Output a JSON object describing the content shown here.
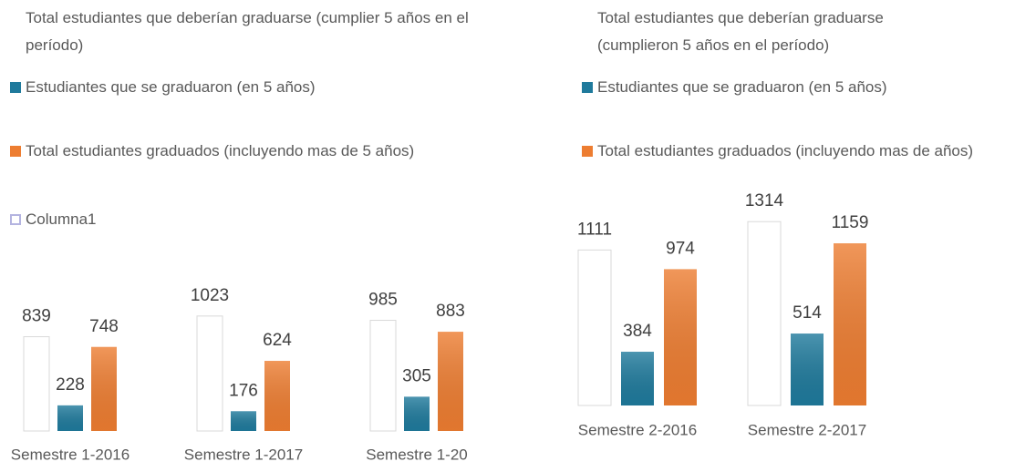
{
  "chart_data": [
    {
      "type": "bar",
      "categories": [
        "Semestre 1-2016",
        "Semestre 1-2017",
        "Semestre 1-20"
      ],
      "series": [
        {
          "name": "Total estudiantes que deberían graduarse (cumplier 5 años en el período)",
          "color": "#ffffff",
          "values": [
            839,
            1023,
            985
          ]
        },
        {
          "name": "Estudiantes que se graduaron (en 5 años)",
          "color": "#1f7a9c",
          "values": [
            228,
            176,
            305
          ]
        },
        {
          "name": "Total estudiantes graduados (incluyendo mas de 5 años)",
          "color": "#ed7d31",
          "values": [
            748,
            624,
            883
          ]
        },
        {
          "name": "Columna1",
          "color": "#ffffff",
          "values": [
            null,
            null,
            null
          ]
        }
      ],
      "ylim": [
        0,
        1200
      ]
    },
    {
      "type": "bar",
      "categories": [
        "Semestre 2-2016",
        "Semestre 2-2017"
      ],
      "series": [
        {
          "name": "Total estudiantes que deberían graduarse (cumplieron 5 años en el período)",
          "color": "#ffffff",
          "values": [
            1111,
            1314
          ]
        },
        {
          "name": "Estudiantes que se graduaron (en 5 años)",
          "color": "#1f7a9c",
          "values": [
            384,
            514
          ]
        },
        {
          "name": "Total estudiantes graduados (incluyendo mas de años)",
          "color": "#ed7d31",
          "values": [
            974,
            1159
          ]
        }
      ],
      "ylim": [
        0,
        1400
      ]
    }
  ]
}
